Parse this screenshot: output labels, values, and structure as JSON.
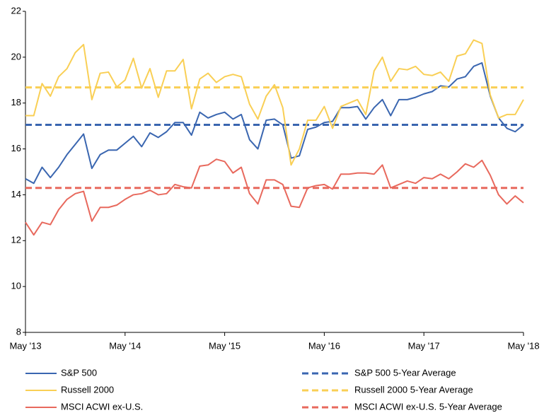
{
  "chart_data": {
    "type": "line",
    "categories": [
      "May '13",
      null,
      null,
      null,
      null,
      null,
      null,
      null,
      null,
      null,
      null,
      null,
      "May '14",
      null,
      null,
      null,
      null,
      null,
      null,
      null,
      null,
      null,
      null,
      null,
      "May '15",
      null,
      null,
      null,
      null,
      null,
      null,
      null,
      null,
      null,
      null,
      null,
      "May '16",
      null,
      null,
      null,
      null,
      null,
      null,
      null,
      null,
      null,
      null,
      null,
      "May '17",
      null,
      null,
      null,
      null,
      null,
      null,
      null,
      null,
      null,
      null,
      null,
      "May '18"
    ],
    "ylim": [
      8,
      22
    ],
    "yticks": [
      8,
      10,
      12,
      14,
      16,
      18,
      20,
      22
    ],
    "grid": false,
    "series": [
      {
        "name": "S&P 500",
        "color": "#3a66b0",
        "values": [
          14.7,
          14.5,
          15.2,
          14.75,
          15.2,
          15.75,
          16.2,
          16.65,
          15.15,
          15.75,
          15.95,
          15.95,
          16.25,
          16.55,
          16.1,
          16.7,
          16.5,
          16.75,
          17.15,
          17.15,
          16.6,
          17.6,
          17.35,
          17.5,
          17.6,
          17.3,
          17.5,
          16.4,
          16.0,
          17.25,
          17.3,
          17.05,
          15.6,
          15.7,
          16.85,
          16.95,
          17.15,
          17.2,
          17.8,
          17.8,
          17.85,
          17.3,
          17.8,
          18.15,
          17.45,
          18.15,
          18.15,
          18.25,
          18.4,
          18.5,
          18.75,
          18.7,
          19.05,
          19.15,
          19.6,
          19.75,
          18.3,
          17.35,
          16.9,
          16.75,
          17.05
        ]
      },
      {
        "name": "S&P 500 5-Year Average",
        "color": "#3a66b0",
        "dashed": true,
        "value": 17.05
      },
      {
        "name": "Russell 2000",
        "color": "#f9cf55",
        "values": [
          17.45,
          17.45,
          18.85,
          18.3,
          19.15,
          19.5,
          20.2,
          20.55,
          18.15,
          19.3,
          19.35,
          18.7,
          19.0,
          19.95,
          18.65,
          19.5,
          18.25,
          19.4,
          19.4,
          19.9,
          17.75,
          19.05,
          19.3,
          18.9,
          19.15,
          19.25,
          19.15,
          17.95,
          17.3,
          18.3,
          18.8,
          17.8,
          15.3,
          16.0,
          17.25,
          17.25,
          17.85,
          16.9,
          17.85,
          18.0,
          18.15,
          17.5,
          19.4,
          20.0,
          18.95,
          19.5,
          19.45,
          19.6,
          19.25,
          19.2,
          19.35,
          18.95,
          20.05,
          20.15,
          20.75,
          20.6,
          18.35,
          17.35,
          17.5,
          17.5,
          18.15
        ]
      },
      {
        "name": "Russell 2000 5-Year Average",
        "color": "#f9cf55",
        "dashed": true,
        "value": 18.68
      },
      {
        "name": "MSCI ACWI ex-U.S.",
        "color": "#e8695d",
        "values": [
          12.8,
          12.25,
          12.8,
          12.7,
          13.35,
          13.8,
          14.05,
          14.15,
          12.85,
          13.45,
          13.45,
          13.55,
          13.8,
          14.0,
          14.05,
          14.2,
          14.0,
          14.05,
          14.45,
          14.35,
          14.3,
          15.25,
          15.3,
          15.55,
          15.45,
          14.95,
          15.2,
          14.05,
          13.6,
          14.65,
          14.65,
          14.45,
          13.5,
          13.45,
          14.3,
          14.4,
          14.45,
          14.25,
          14.9,
          14.9,
          14.95,
          14.95,
          14.9,
          15.3,
          14.3,
          14.45,
          14.6,
          14.5,
          14.75,
          14.7,
          14.9,
          14.7,
          15.0,
          15.35,
          15.2,
          15.5,
          14.85,
          14.0,
          13.6,
          13.95,
          13.65
        ]
      },
      {
        "name": "MSCI ACWI ex-U.S. 5-Year Average",
        "color": "#e8695d",
        "dashed": true,
        "value": 14.3
      }
    ]
  }
}
